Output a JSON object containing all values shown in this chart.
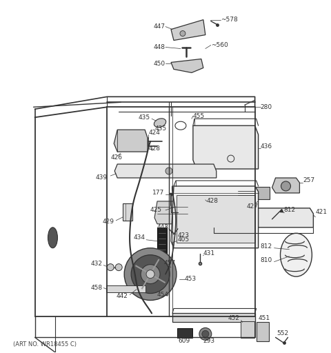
{
  "footer": "(ART NO. WR18455 C)",
  "bg_color": "#ffffff",
  "lc": "#333333",
  "tc": "#333333",
  "figsize": [
    4.8,
    5.12
  ],
  "dpi": 100
}
